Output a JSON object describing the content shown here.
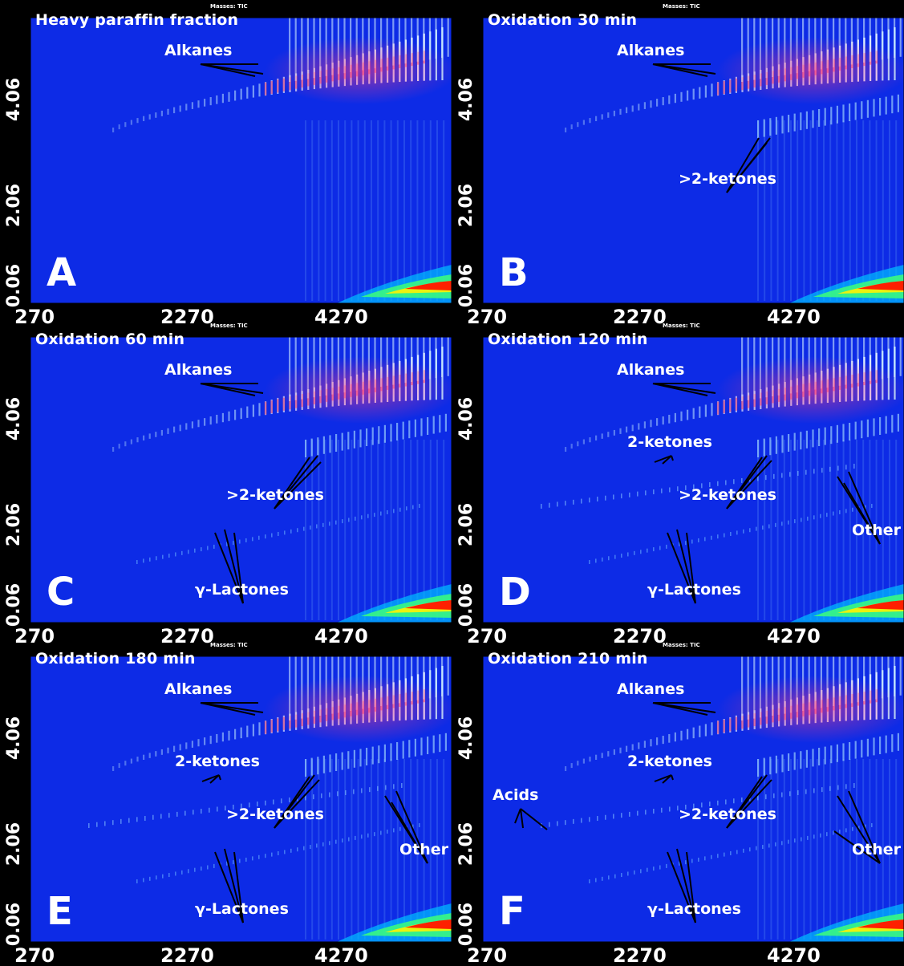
{
  "header_text": "Masses: TIC",
  "colors": {
    "background": "#0d2be6",
    "frame": "#000000",
    "colormap": [
      "#1f5dff",
      "#00c8ff",
      "#3cff7a",
      "#fff200",
      "#ff9a00",
      "#ff1400"
    ],
    "arrows": "#000000"
  },
  "chart_data": [
    {
      "type": "heatmap",
      "panel_label": "A",
      "title": "Heavy paraffin fraction",
      "x_ticks": [
        "270",
        "2270",
        "4270"
      ],
      "y_ticks": [
        "0.06",
        "2.06",
        "4.06"
      ],
      "annotations": [
        "Alkanes"
      ]
    },
    {
      "type": "heatmap",
      "panel_label": "B",
      "title": "Oxidation 30 min",
      "x_ticks": [
        "270",
        "2270",
        "4270"
      ],
      "y_ticks": [
        "0.06",
        "2.06",
        "4.06"
      ],
      "annotations": [
        "Alkanes",
        ">2-ketones"
      ]
    },
    {
      "type": "heatmap",
      "panel_label": "C",
      "title": "Oxidation 60 min",
      "x_ticks": [
        "270",
        "2270",
        "4270"
      ],
      "y_ticks": [
        "0.06",
        "2.06",
        "4.06"
      ],
      "annotations": [
        "Alkanes",
        ">2-ketones",
        "γ-Lactones"
      ]
    },
    {
      "type": "heatmap",
      "panel_label": "D",
      "title": "Oxidation 120 min",
      "x_ticks": [
        "270",
        "2270",
        "4270"
      ],
      "y_ticks": [
        "0.06",
        "2.06",
        "4.06"
      ],
      "annotations": [
        "Alkanes",
        "2-ketones",
        ">2-ketones",
        "Other",
        "γ-Lactones"
      ]
    },
    {
      "type": "heatmap",
      "panel_label": "E",
      "title": "Oxidation 180 min",
      "x_ticks": [
        "270",
        "2270",
        "4270"
      ],
      "y_ticks": [
        "0.06",
        "2.06",
        "4.06"
      ],
      "annotations": [
        "Alkanes",
        "2-ketones",
        ">2-ketones",
        "Other",
        "γ-Lactones"
      ]
    },
    {
      "type": "heatmap",
      "panel_label": "F",
      "title": "Oxidation 210 min",
      "x_ticks": [
        "270",
        "2270",
        "4270"
      ],
      "y_ticks": [
        "0.06",
        "2.06",
        "4.06"
      ],
      "annotations": [
        "Alkanes",
        "2-ketones",
        "Acids",
        ">2-ketones",
        "Other",
        "γ-Lactones"
      ]
    }
  ]
}
